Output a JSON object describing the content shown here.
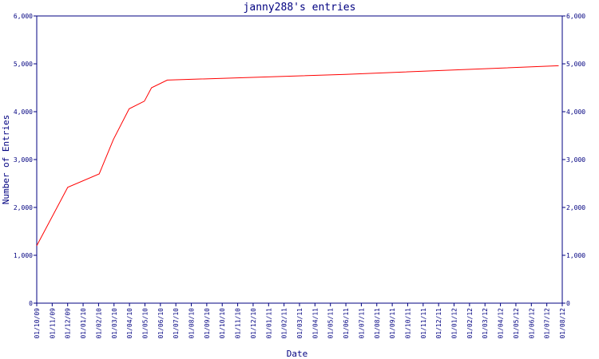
{
  "chart_data": {
    "type": "line",
    "title": "janny288's entries",
    "xlabel": "Date",
    "ylabel": "Number of Entries",
    "ylim": [
      0,
      6000
    ],
    "y_ticks": [
      "0",
      "1,000",
      "2,000",
      "3,000",
      "4,000",
      "5,000",
      "6,000"
    ],
    "y_tick_values": [
      0,
      1000,
      2000,
      3000,
      4000,
      5000,
      6000
    ],
    "x_tick_labels": [
      "01/10/09",
      "01/11/09",
      "01/12/09",
      "01/01/10",
      "01/02/10",
      "01/03/10",
      "01/04/10",
      "01/05/10",
      "01/06/10",
      "01/07/10",
      "01/08/10",
      "01/09/10",
      "01/10/10",
      "01/11/10",
      "01/12/10",
      "01/01/11",
      "01/02/11",
      "01/03/11",
      "01/04/11",
      "01/05/11",
      "01/06/11",
      "01/07/11",
      "01/08/11",
      "01/09/11",
      "01/10/11",
      "01/11/11",
      "01/12/11",
      "01/01/12",
      "01/02/12",
      "01/03/12",
      "01/04/12",
      "01/05/12",
      "01/06/12",
      "01/07/12",
      "01/08/12"
    ],
    "x": [
      "2009-10-01",
      "2009-12-01",
      "2010-02-01",
      "2010-03-01",
      "2010-04-01",
      "2010-05-01",
      "2010-05-15",
      "2010-06-15",
      "2011-06-01",
      "2012-07-25"
    ],
    "series": [
      {
        "values": [
          1200,
          2420,
          2700,
          3420,
          4060,
          4220,
          4500,
          4660,
          4780,
          4960
        ]
      }
    ],
    "grid": false,
    "colors": {
      "line": "#ff0000",
      "axis": "#000080",
      "text": "#000080"
    }
  }
}
